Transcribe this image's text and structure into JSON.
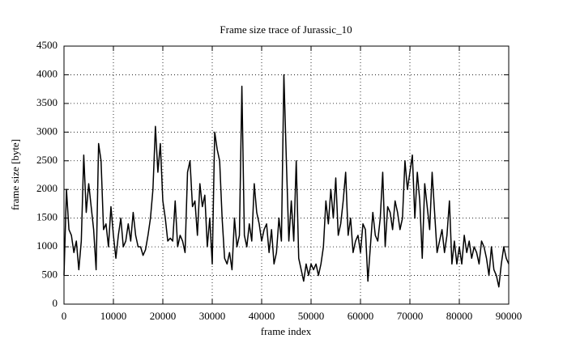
{
  "chart_data": {
    "type": "line",
    "title": "Frame size trace of Jurassic_10",
    "xlabel": "frame index",
    "ylabel": "frame size [byte]",
    "x": [
      0,
      500,
      1000,
      1500,
      2000,
      2500,
      3000,
      3500,
      4000,
      4500,
      5000,
      5500,
      6000,
      6500,
      7000,
      7500,
      8000,
      8500,
      9000,
      9500,
      10000,
      10500,
      11000,
      11500,
      12000,
      12500,
      13000,
      13500,
      14000,
      14500,
      15000,
      15500,
      16000,
      16500,
      17000,
      17500,
      18000,
      18500,
      19000,
      19500,
      20000,
      20500,
      21000,
      21500,
      22000,
      22500,
      23000,
      23500,
      24000,
      24500,
      25000,
      25500,
      26000,
      26500,
      27000,
      27500,
      28000,
      28500,
      29000,
      29500,
      30000,
      30500,
      31000,
      31500,
      32000,
      32500,
      33000,
      33500,
      34000,
      34500,
      35000,
      35500,
      36000,
      36500,
      37000,
      37500,
      38000,
      38500,
      39000,
      39500,
      40000,
      40500,
      41000,
      41500,
      42000,
      42500,
      43000,
      43500,
      44000,
      44500,
      45000,
      45500,
      46000,
      46500,
      47000,
      47500,
      48000,
      48500,
      49000,
      49500,
      50000,
      50500,
      51000,
      51500,
      52000,
      52500,
      53000,
      53500,
      54000,
      54500,
      55000,
      55500,
      56000,
      56500,
      57000,
      57500,
      58000,
      58500,
      59000,
      59500,
      60000,
      60500,
      61000,
      61500,
      62000,
      62500,
      63000,
      63500,
      64000,
      64500,
      65000,
      65500,
      66000,
      66500,
      67000,
      67500,
      68000,
      68500,
      69000,
      69500,
      70000,
      70500,
      71000,
      71500,
      72000,
      72500,
      73000,
      73500,
      74000,
      74500,
      75000,
      75500,
      76000,
      76500,
      77000,
      77500,
      78000,
      78500,
      79000,
      79500,
      80000,
      80500,
      81000,
      81500,
      82000,
      82500,
      83000,
      83500,
      84000,
      84500,
      85000,
      85500,
      86000,
      86500,
      87000,
      87500,
      88000,
      88500,
      89000,
      89500,
      90000
    ],
    "values": [
      500,
      2000,
      1300,
      1200,
      900,
      1100,
      600,
      1100,
      2600,
      1600,
      2100,
      1700,
      1300,
      600,
      2800,
      2500,
      1300,
      1400,
      1000,
      1700,
      1200,
      800,
      1200,
      1500,
      1000,
      1100,
      1400,
      1100,
      1600,
      1200,
      1000,
      1000,
      850,
      950,
      1200,
      1500,
      2000,
      3100,
      2300,
      2800,
      1800,
      1500,
      1100,
      1150,
      1100,
      1800,
      1000,
      1200,
      1100,
      900,
      2300,
      2500,
      1700,
      1800,
      1200,
      2100,
      1700,
      1900,
      1000,
      1500,
      700,
      3000,
      2700,
      2500,
      1500,
      800,
      700,
      900,
      600,
      1500,
      1000,
      1200,
      3800,
      1200,
      1000,
      1400,
      1100,
      2100,
      1600,
      1400,
      1100,
      1300,
      1400,
      900,
      1300,
      700,
      900,
      1500,
      1100,
      4000,
      2500,
      1100,
      1800,
      1100,
      2500,
      800,
      600,
      400,
      700,
      500,
      700,
      600,
      700,
      500,
      700,
      1000,
      1800,
      1400,
      2000,
      1500,
      2200,
      1200,
      1400,
      1800,
      2300,
      1200,
      1500,
      900,
      1100,
      1200,
      900,
      1400,
      1300,
      400,
      1000,
      1600,
      1200,
      1100,
      1500,
      2300,
      1000,
      1700,
      1600,
      1300,
      1800,
      1600,
      1300,
      1500,
      2500,
      2000,
      2300,
      2600,
      1500,
      2300,
      1800,
      800,
      2100,
      1700,
      1300,
      2300,
      1600,
      900,
      1100,
      1300,
      900,
      1200,
      1800,
      700,
      1100,
      700,
      1000,
      700,
      1200,
      900,
      1100,
      800,
      1000,
      900,
      700,
      1100,
      1000,
      800,
      500,
      1000,
      600,
      500,
      300,
      700,
      1000,
      800,
      700
    ],
    "color": "#000000",
    "xlim": [
      0,
      90000
    ],
    "ylim": [
      0,
      4500
    ],
    "xticks": [
      0,
      10000,
      20000,
      30000,
      40000,
      50000,
      60000,
      70000,
      80000,
      90000
    ],
    "yticks": [
      0,
      500,
      1000,
      1500,
      2000,
      2500,
      3000,
      3500,
      4000,
      4500
    ],
    "grid": true
  }
}
